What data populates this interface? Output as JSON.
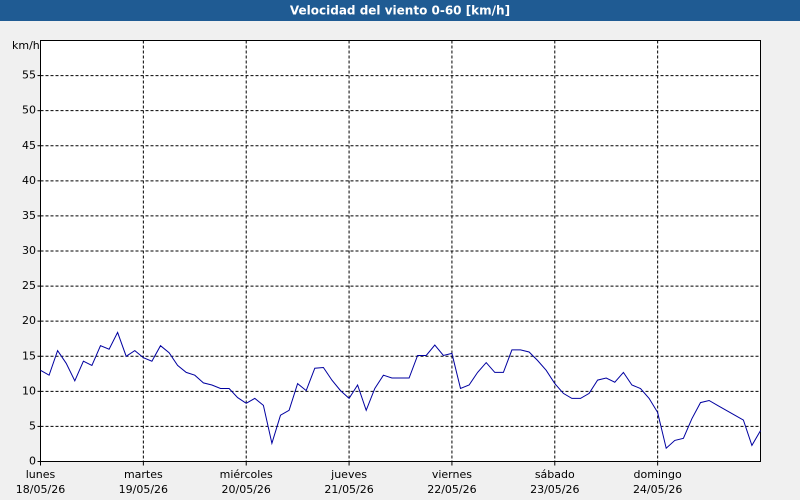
{
  "chart_data": {
    "type": "line",
    "title": "Velocidad del viento 0-60 [km/h]",
    "y_label": "km/h",
    "x": [
      0,
      2,
      4,
      6,
      8,
      10,
      12,
      14,
      16,
      18,
      20,
      22,
      24,
      26,
      28,
      30,
      32,
      34,
      36,
      38,
      40,
      42,
      44,
      46,
      48,
      50,
      52,
      54,
      56,
      58,
      60,
      62,
      64,
      66,
      68,
      70,
      72,
      74,
      76,
      78,
      80,
      82,
      84,
      86,
      88,
      90,
      92,
      94,
      96,
      98,
      100,
      102,
      104,
      106,
      108,
      110,
      112,
      114,
      116,
      118,
      120,
      122,
      124,
      126,
      128,
      130,
      132,
      134,
      136,
      138,
      140,
      142,
      144,
      146,
      148,
      150,
      152,
      154,
      156,
      158,
      160,
      162,
      164,
      166,
      168
    ],
    "series": [
      {
        "color": "#0000a0",
        "values": [
          13,
          12.3,
          15.8,
          14,
          11.5,
          14.3,
          13.7,
          16.5,
          16,
          18.4,
          15,
          15.8,
          14.8,
          14.3,
          16.5,
          15.5,
          13.7,
          12.7,
          12.3,
          11.2,
          10.9,
          10.4,
          10.4,
          9.1,
          8.3,
          9,
          8,
          2.6,
          6.6,
          7.3,
          11.1,
          10.1,
          13.3,
          13.4,
          11.6,
          10.1,
          9,
          10.9,
          7.3,
          10.4,
          12.3,
          11.9,
          11.9,
          11.9,
          15.1,
          15.1,
          16.6,
          15.1,
          15.4,
          10.4,
          10.9,
          12.7,
          14.1,
          12.7,
          12.7,
          15.9,
          15.9,
          15.6,
          14.4,
          13,
          11.1,
          9.7,
          9,
          9,
          9.7,
          11.6,
          11.9,
          11.3,
          12.7,
          10.9,
          10.4,
          9,
          7,
          1.9,
          3,
          3.3,
          6.1,
          8.4,
          8.7,
          8,
          7.3,
          6.6,
          5.9,
          2.3,
          4.4
        ]
      }
    ],
    "xlim": [
      0,
      168
    ],
    "xticks": [
      {
        "value": 0,
        "label": "lunes",
        "date": "18/05/26"
      },
      {
        "value": 24,
        "label": "martes",
        "date": "19/05/26"
      },
      {
        "value": 48,
        "label": "miércoles",
        "date": "20/05/26"
      },
      {
        "value": 72,
        "label": "jueves",
        "date": "21/05/26"
      },
      {
        "value": 96,
        "label": "viernes",
        "date": "22/05/26"
      },
      {
        "value": 120,
        "label": "sábado",
        "date": "23/05/26"
      },
      {
        "value": 144,
        "label": "domingo",
        "date": "24/05/26"
      }
    ],
    "ylim": [
      0,
      60
    ],
    "yticks": [
      0,
      5,
      10,
      15,
      20,
      25,
      30,
      35,
      40,
      45,
      50,
      55
    ],
    "grid": true
  }
}
